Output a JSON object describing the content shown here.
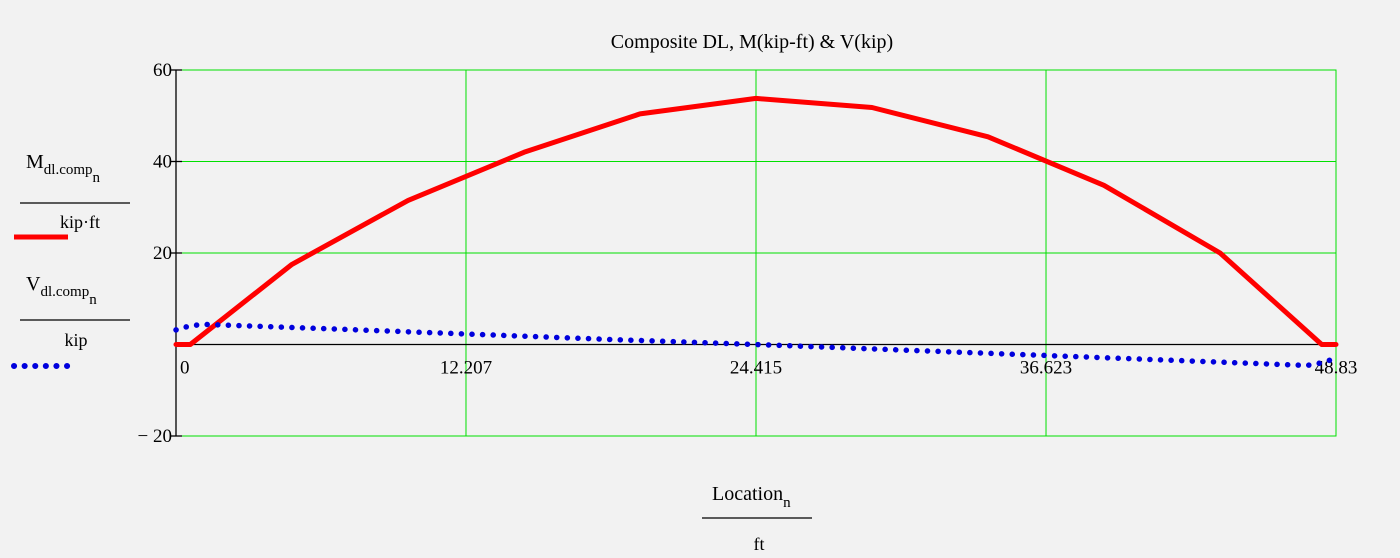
{
  "chart_data": {
    "type": "line",
    "title": "Composite DL, M(kip-ft) & V(kip)",
    "xlabel": {
      "main": "Location",
      "sub": "n",
      "unit": "ft"
    },
    "xlim": [
      0,
      48.83
    ],
    "ylim": [
      -20,
      60
    ],
    "x_ticks": [
      "0",
      "12.207",
      "24.415",
      "36.623",
      "48.83"
    ],
    "x_tick_values": [
      0,
      12.207,
      24.415,
      36.623,
      48.83
    ],
    "y_ticks": [
      "60",
      "40",
      "20",
      "− 20"
    ],
    "y_tick_values": [
      60,
      40,
      20,
      -20
    ],
    "grid": true,
    "grid_color": "#00e000",
    "series": [
      {
        "name_main": "M",
        "name_sub": "dl.comp",
        "name_subsub": "n",
        "unit": "kip·ft",
        "color": "#ff0000",
        "style": "solid",
        "x": [
          0,
          0.6,
          4.88,
          9.77,
          14.65,
          19.53,
          24.415,
          29.3,
          34.18,
          39.06,
          43.95,
          48.23,
          48.83
        ],
        "y": [
          0,
          0,
          17.5,
          31.5,
          42.0,
          50.4,
          53.8,
          51.8,
          45.4,
          34.8,
          20.0,
          0,
          0
        ]
      },
      {
        "name_main": "V",
        "name_sub": "dl.comp",
        "name_subsub": "n",
        "unit": "kip",
        "color": "#0000dd",
        "style": "dotted",
        "x": [
          0,
          0.6,
          1.2,
          6.1,
          12.207,
          18.3,
          24.415,
          30.5,
          36.623,
          42.7,
          47.6,
          48.23,
          48.83
        ],
        "y": [
          3.2,
          4.1,
          4.4,
          3.5,
          2.3,
          1.1,
          0,
          -1.2,
          -2.4,
          -3.6,
          -4.6,
          -4.0,
          -3.0
        ]
      }
    ]
  }
}
